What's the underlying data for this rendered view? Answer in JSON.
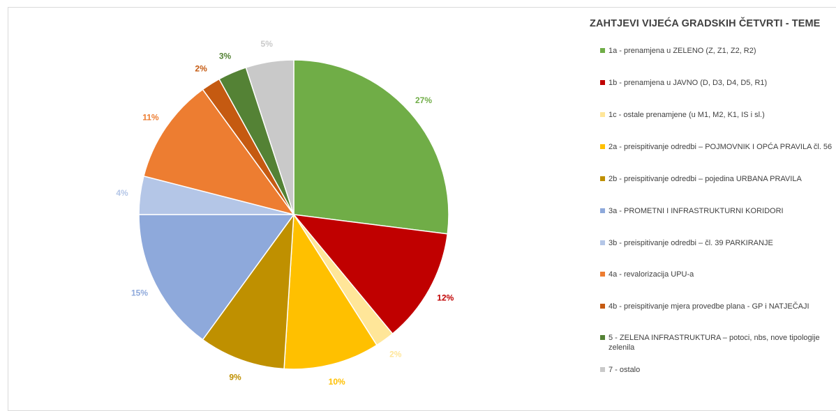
{
  "chart_data": {
    "type": "pie",
    "title": "ZAHTJEVI VIJEĆA GRADSKIH ČETVRTI - TEME",
    "legend_position": "right",
    "slices": [
      {
        "label": "1a - prenamjena u ZELENO (Z, Z1, Z2, R2)",
        "value": 27,
        "display": "27%",
        "color": "#70AD47"
      },
      {
        "label": "1b - prenamjena u JAVNO (D, D3, D4, D5, R1)",
        "value": 12,
        "display": "12%",
        "color": "#C00000"
      },
      {
        "label": "1c - ostale prenamjene (u M1, M2, K1, IS i sl.)",
        "value": 2,
        "display": "2%",
        "color": "#FFE699"
      },
      {
        "label": "2a - preispitivanje odredbi – POJMOVNIK I OPĆA PRAVILA čl. 56",
        "value": 10,
        "display": "10%",
        "color": "#FFC000"
      },
      {
        "label": "2b - preispitivanje odredbi – pojedina URBANA PRAVILA",
        "value": 9,
        "display": "9%",
        "color": "#BF9000"
      },
      {
        "label": "3a - PROMETNI I INFRASTRUKTURNI KORIDORI",
        "value": 15,
        "display": "15%",
        "color": "#8EA9DB"
      },
      {
        "label": "3b - preispitivanje odredbi – čl. 39 PARKIRANJE",
        "value": 4,
        "display": "4%",
        "color": "#B4C6E7"
      },
      {
        "label": "4a - revalorizacija UPU-a",
        "value": 11,
        "display": "11%",
        "color": "#ED7D31"
      },
      {
        "label": "4b - preispitivanje mjera provedbe plana - GP i NATJEČAJI",
        "value": 2,
        "display": "2%",
        "color": "#C55A11"
      },
      {
        "label": "5 - ZELENA INFRASTRUKTURA – potoci, nbs, nove tipologije zelenila",
        "value": 3,
        "display": "3%",
        "color": "#548235"
      },
      {
        "label": "7 - ostalo",
        "value": 5,
        "display": "5%",
        "color": "#C9C9C9"
      }
    ]
  }
}
